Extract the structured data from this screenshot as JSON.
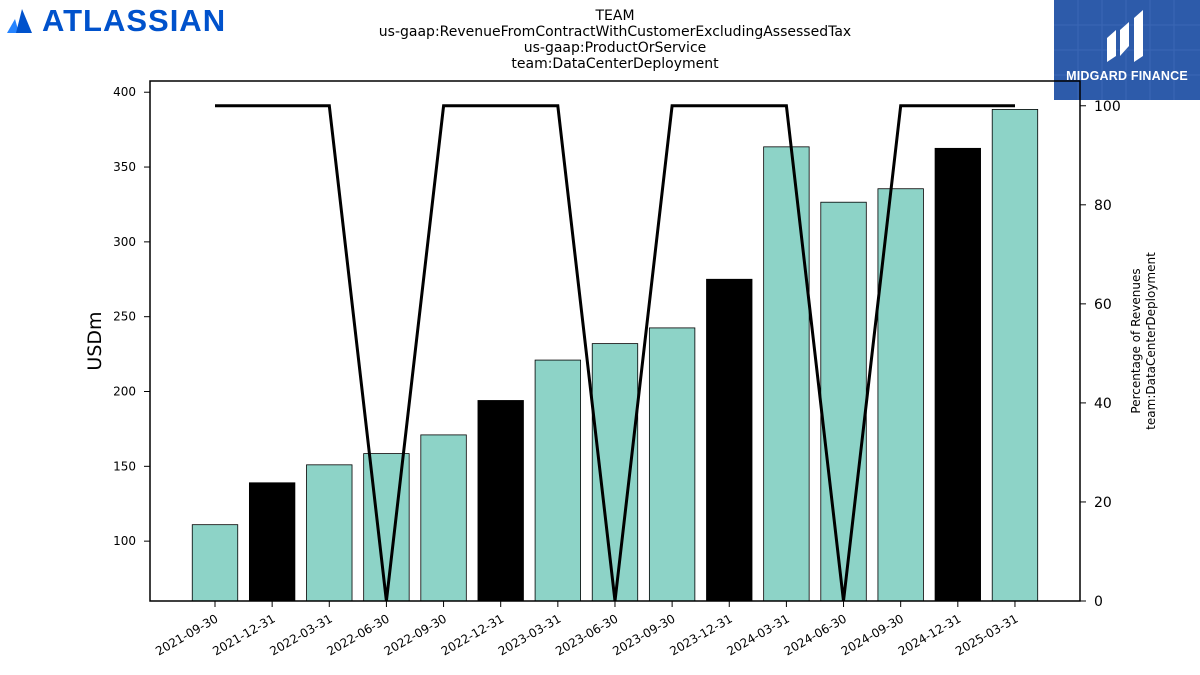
{
  "brand": {
    "name": "ATLASSIAN",
    "color": "#0052CC"
  },
  "badge": {
    "name": "MIDGARD FINANCE",
    "color": "#2D5BAA"
  },
  "chart_data": {
    "type": "bar",
    "title_lines": [
      "TEAM",
      "us-gaap:RevenueFromContractWithCustomerExcludingAssessedTax",
      "us-gaap:ProductOrService",
      "team:DataCenterDeployment"
    ],
    "ylabel": "USDm",
    "y2label_lines": [
      "Percentage of Revenues",
      "team:DataCenterDeployment"
    ],
    "ylim": [
      60,
      407.5
    ],
    "y2lim": [
      0,
      105
    ],
    "yticks": [
      100,
      150,
      200,
      250,
      300,
      350,
      400
    ],
    "y2ticks": [
      0,
      20,
      40,
      60,
      80,
      100
    ],
    "categories": [
      "2021-09-30",
      "2021-12-31",
      "2022-03-31",
      "2022-06-30",
      "2022-09-30",
      "2022-12-31",
      "2023-03-31",
      "2023-06-30",
      "2023-09-30",
      "2023-12-31",
      "2024-03-31",
      "2024-06-30",
      "2024-09-30",
      "2024-12-31",
      "2025-03-31"
    ],
    "series": [
      {
        "type": "bar",
        "values": [
          111,
          139,
          151,
          158.5,
          171,
          194,
          221,
          232,
          242.5,
          275,
          363.5,
          326.5,
          335.5,
          362.5,
          388.5
        ],
        "colors": [
          "#8DD3C7",
          "#000000",
          "#8DD3C7",
          "#8DD3C7",
          "#8DD3C7",
          "#000000",
          "#8DD3C7",
          "#8DD3C7",
          "#8DD3C7",
          "#000000",
          "#8DD3C7",
          "#8DD3C7",
          "#8DD3C7",
          "#000000",
          "#8DD3C7"
        ]
      },
      {
        "type": "line",
        "axis": "right",
        "color": "#000000",
        "values": [
          100,
          100,
          100,
          0,
          100,
          100,
          100,
          0,
          100,
          100,
          100,
          0,
          100,
          100,
          100
        ]
      }
    ],
    "grid": false,
    "legend": "none"
  }
}
